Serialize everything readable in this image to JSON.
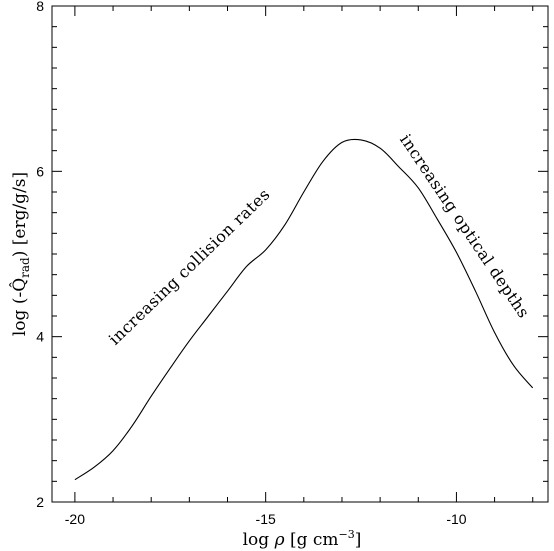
{
  "chart_data": {
    "type": "line",
    "title": "",
    "xlabel": "log ρ [g cm⁻³]",
    "xlabel_parts": {
      "prefix": "log ",
      "symbol": "ρ",
      "unit": " [g cm",
      "exponent": "−3",
      "close": "]"
    },
    "ylabel": "log (-Q̂rad) [erg/g/s]",
    "ylabel_parts": {
      "prefix": "log (-",
      "symbol": "Q̂",
      "subscript": "rad",
      "unit": ") [erg/g/s]"
    },
    "xlim": [
      -20.6,
      -7.6
    ],
    "ylim": [
      2,
      8
    ],
    "xticks": [
      -20,
      -15,
      -10
    ],
    "xtick_labels": [
      "-20",
      "-15",
      "-10"
    ],
    "yticks": [
      2,
      4,
      6,
      8
    ],
    "ytick_labels": [
      "2",
      "4",
      "6",
      "8"
    ],
    "grid": false,
    "series": [
      {
        "x": [
          -20.0,
          -19.5,
          -19.0,
          -18.5,
          -18.0,
          -17.5,
          -17.0,
          -16.5,
          -16.0,
          -15.5,
          -15.0,
          -14.5,
          -14.0,
          -13.5,
          -13.0,
          -12.5,
          -12.0,
          -11.5,
          -11.0,
          -10.5,
          -10.0,
          -9.5,
          -9.0,
          -8.5,
          -8.0
        ],
        "y": [
          2.27,
          2.42,
          2.62,
          2.92,
          3.28,
          3.62,
          3.95,
          4.25,
          4.55,
          4.85,
          5.05,
          5.35,
          5.75,
          6.12,
          6.35,
          6.38,
          6.28,
          6.05,
          5.8,
          5.42,
          5.02,
          4.55,
          4.05,
          3.65,
          3.38
        ]
      }
    ],
    "annotations": [
      {
        "text": "increasing collision rates",
        "x": -16.9,
        "y": 4.8,
        "angle": -44
      },
      {
        "text": "increasing optical depths",
        "x": -9.9,
        "y": 5.3,
        "angle": 56
      }
    ]
  }
}
